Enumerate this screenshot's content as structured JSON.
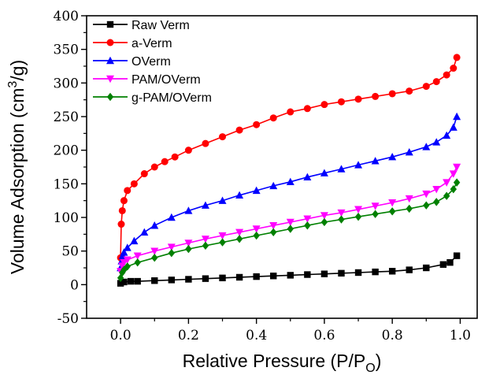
{
  "chart_data": {
    "type": "line",
    "xlabel": "Relative Pressure (P/P",
    "xlabel_sub": "O",
    "xlabel_end": ")",
    "ylabel": "Volume Adsorption (cm",
    "ylabel_sup": "3",
    "ylabel_end": "/g)",
    "xlim": [
      -0.1,
      1.05
    ],
    "ylim": [
      -50,
      400
    ],
    "xticks": [
      0.0,
      0.2,
      0.4,
      0.6,
      0.8,
      1.0
    ],
    "xtick_labels": [
      "0.0",
      "0.2",
      "0.4",
      "0.6",
      "0.8",
      "1.0"
    ],
    "yticks": [
      -50,
      0,
      50,
      100,
      150,
      200,
      250,
      300,
      350,
      400
    ],
    "ytick_labels": [
      "-50",
      "0",
      "50",
      "100",
      "150",
      "200",
      "250",
      "300",
      "350",
      "400"
    ],
    "legend_position": "top-left",
    "series": [
      {
        "name": "Raw Verm",
        "color": "#000000",
        "marker": "square",
        "x": [
          0.0,
          0.01,
          0.03,
          0.05,
          0.1,
          0.15,
          0.2,
          0.25,
          0.3,
          0.35,
          0.4,
          0.45,
          0.5,
          0.55,
          0.6,
          0.65,
          0.7,
          0.75,
          0.8,
          0.85,
          0.9,
          0.95,
          0.97,
          0.99
        ],
        "y": [
          2,
          4,
          5,
          5,
          6,
          7,
          8,
          9,
          10,
          11,
          12,
          13,
          14,
          15,
          16,
          17,
          18,
          19,
          20,
          22,
          25,
          30,
          33,
          43
        ]
      },
      {
        "name": "a-Verm",
        "color": "#ff0000",
        "marker": "circle",
        "x": [
          0.0,
          0.002,
          0.005,
          0.01,
          0.02,
          0.04,
          0.07,
          0.1,
          0.13,
          0.16,
          0.2,
          0.25,
          0.3,
          0.35,
          0.4,
          0.45,
          0.5,
          0.55,
          0.6,
          0.65,
          0.7,
          0.75,
          0.8,
          0.85,
          0.9,
          0.93,
          0.96,
          0.98,
          0.99
        ],
        "y": [
          40,
          90,
          110,
          125,
          140,
          150,
          165,
          175,
          183,
          190,
          200,
          210,
          220,
          230,
          238,
          248,
          257,
          262,
          268,
          272,
          276,
          280,
          284,
          288,
          295,
          302,
          312,
          322,
          338
        ]
      },
      {
        "name": "OVerm",
        "color": "#0000ff",
        "marker": "triangle-up",
        "x": [
          0.0,
          0.003,
          0.006,
          0.01,
          0.02,
          0.04,
          0.07,
          0.1,
          0.15,
          0.2,
          0.25,
          0.3,
          0.35,
          0.4,
          0.45,
          0.5,
          0.55,
          0.6,
          0.65,
          0.7,
          0.75,
          0.8,
          0.85,
          0.9,
          0.93,
          0.96,
          0.98,
          0.99
        ],
        "y": [
          25,
          35,
          43,
          48,
          55,
          65,
          78,
          88,
          100,
          110,
          118,
          125,
          133,
          140,
          147,
          153,
          160,
          166,
          172,
          178,
          184,
          190,
          197,
          205,
          212,
          222,
          234,
          250
        ]
      },
      {
        "name": "PAM/OVerm",
        "color": "#ff00ff",
        "marker": "triangle-down",
        "x": [
          0.0,
          0.005,
          0.01,
          0.02,
          0.05,
          0.1,
          0.15,
          0.2,
          0.25,
          0.3,
          0.35,
          0.4,
          0.45,
          0.5,
          0.55,
          0.6,
          0.65,
          0.7,
          0.75,
          0.8,
          0.85,
          0.9,
          0.93,
          0.96,
          0.98,
          0.99
        ],
        "y": [
          20,
          28,
          33,
          37,
          43,
          50,
          56,
          62,
          68,
          73,
          78,
          83,
          88,
          93,
          98,
          103,
          107,
          112,
          117,
          122,
          128,
          135,
          142,
          152,
          165,
          175
        ]
      },
      {
        "name": "g-PAM/OVerm",
        "color": "#008000",
        "marker": "diamond",
        "x": [
          0.0,
          0.005,
          0.01,
          0.02,
          0.05,
          0.1,
          0.15,
          0.2,
          0.25,
          0.3,
          0.35,
          0.4,
          0.45,
          0.5,
          0.55,
          0.6,
          0.65,
          0.7,
          0.75,
          0.8,
          0.85,
          0.9,
          0.93,
          0.96,
          0.98,
          0.99
        ],
        "y": [
          10,
          18,
          22,
          27,
          33,
          40,
          47,
          53,
          58,
          63,
          68,
          73,
          78,
          83,
          88,
          93,
          97,
          101,
          105,
          109,
          113,
          118,
          123,
          132,
          142,
          152
        ]
      }
    ]
  }
}
